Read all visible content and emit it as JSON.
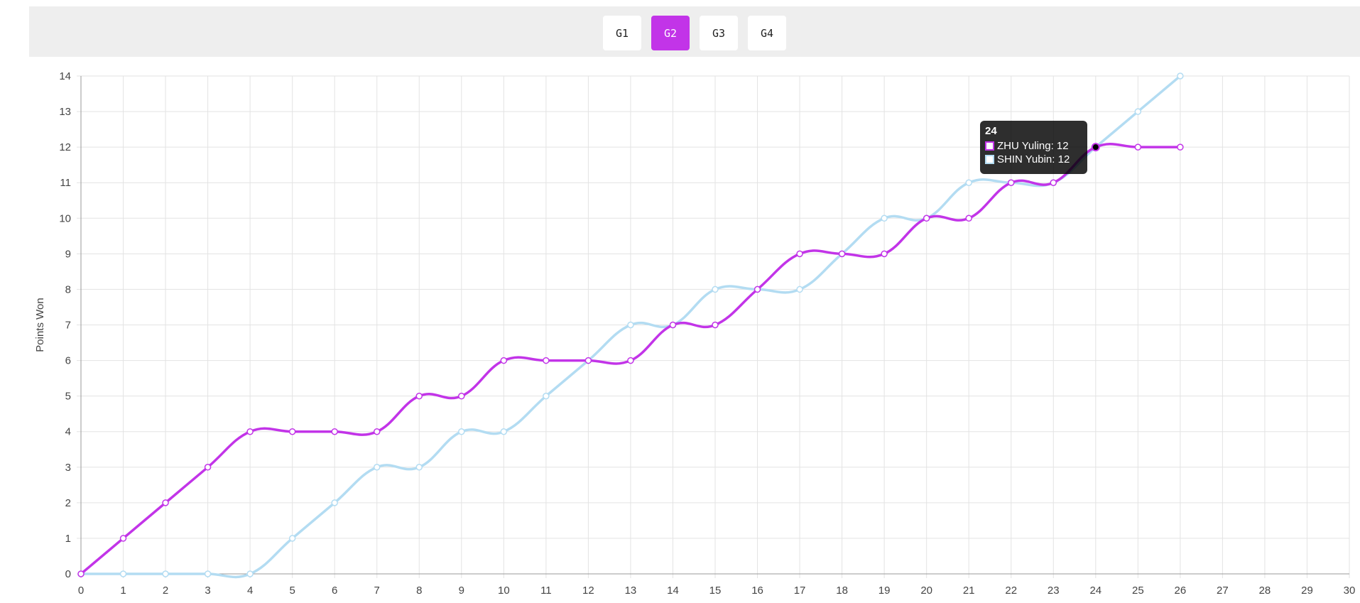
{
  "game_tabs": [
    {
      "label": "G1",
      "active": false
    },
    {
      "label": "G2",
      "active": true
    },
    {
      "label": "G3",
      "active": false
    },
    {
      "label": "G4",
      "active": false
    }
  ],
  "colors": {
    "accent": "#c234e8",
    "series_a": "#c234e8",
    "series_b": "#b3dcf2",
    "grid": "#e3e3e3",
    "axis": "#999999"
  },
  "tooltip": {
    "title": "24",
    "rows": [
      {
        "label": "ZHU Yuling: 12"
      },
      {
        "label": "SHIN Yubin: 12"
      }
    ]
  },
  "chart_data": {
    "type": "line",
    "title": "",
    "xlabel": "",
    "ylabel": "Points Won",
    "xlim": [
      0,
      30
    ],
    "ylim": [
      0,
      14
    ],
    "x_ticks": [
      0,
      1,
      2,
      3,
      4,
      5,
      6,
      7,
      8,
      9,
      10,
      11,
      12,
      13,
      14,
      15,
      16,
      17,
      18,
      19,
      20,
      21,
      22,
      23,
      24,
      25,
      26,
      27,
      28,
      29,
      30
    ],
    "y_ticks": [
      0,
      1,
      2,
      3,
      4,
      5,
      6,
      7,
      8,
      9,
      10,
      11,
      12,
      13,
      14
    ],
    "grid": true,
    "legend": "none",
    "series": [
      {
        "name": "ZHU Yuling",
        "color": "#c234e8",
        "x": [
          0,
          1,
          2,
          3,
          4,
          5,
          6,
          7,
          8,
          9,
          10,
          11,
          12,
          13,
          14,
          15,
          16,
          17,
          18,
          19,
          20,
          21,
          22,
          23,
          24,
          25,
          26
        ],
        "values": [
          0,
          1,
          2,
          3,
          4,
          4,
          4,
          4,
          5,
          5,
          6,
          6,
          6,
          6,
          7,
          7,
          8,
          9,
          9,
          9,
          10,
          10,
          11,
          11,
          12,
          12,
          12
        ]
      },
      {
        "name": "SHIN Yubin",
        "color": "#b3dcf2",
        "x": [
          0,
          1,
          2,
          3,
          4,
          5,
          6,
          7,
          8,
          9,
          10,
          11,
          12,
          13,
          14,
          15,
          16,
          17,
          18,
          19,
          20,
          21,
          22,
          23,
          24,
          25,
          26
        ],
        "values": [
          0,
          0,
          0,
          0,
          0,
          1,
          2,
          3,
          3,
          4,
          4,
          5,
          6,
          7,
          7,
          8,
          8,
          8,
          9,
          10,
          10,
          11,
          11,
          11,
          12,
          13,
          14
        ]
      }
    ]
  }
}
